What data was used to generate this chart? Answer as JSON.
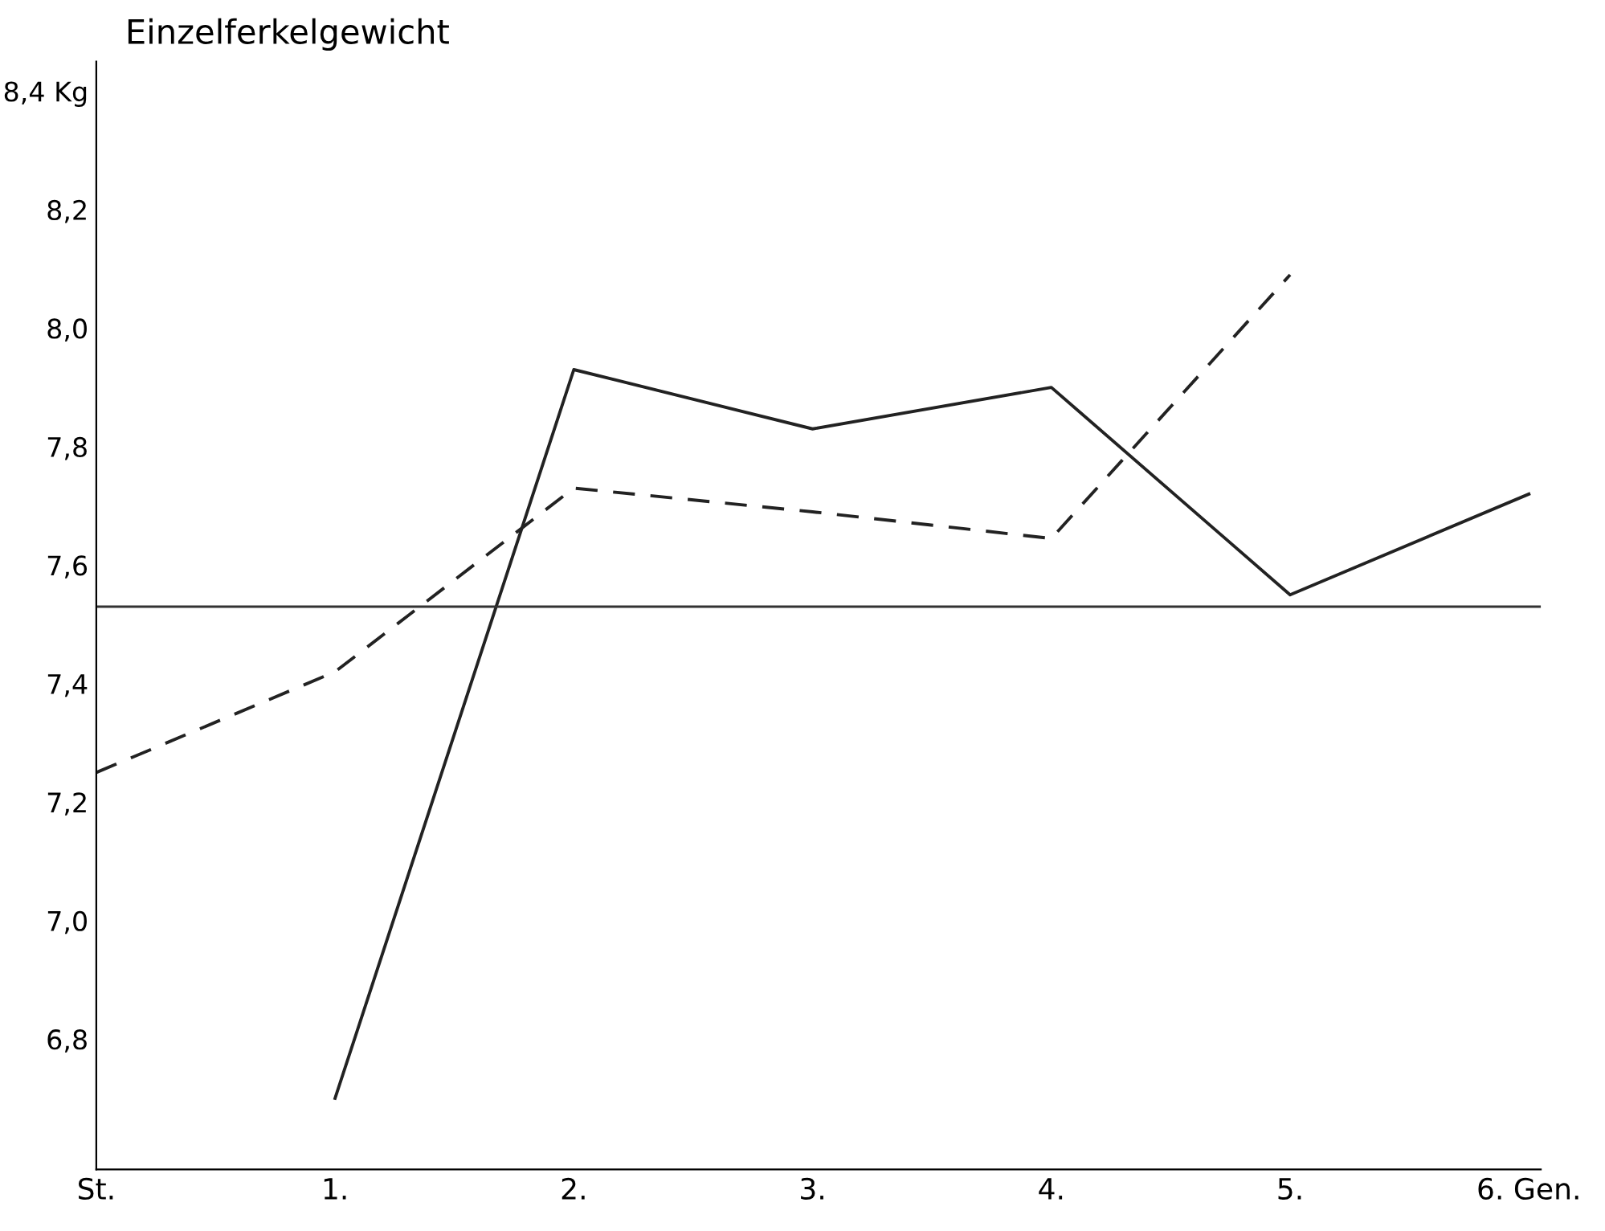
{
  "chart_data": {
    "type": "line",
    "title": "Einzelferkelgewicht",
    "categories": [
      "St.",
      "1.",
      "2.",
      "3.",
      "4.",
      "5.",
      "6. Gen."
    ],
    "series": [
      {
        "color": "#222222",
        "line_style": "solid",
        "values": [
          null,
          6.7,
          7.93,
          7.83,
          7.9,
          7.55,
          7.72
        ]
      },
      {
        "color": "#222222",
        "line_style": "dashed",
        "values": [
          7.25,
          7.42,
          7.73,
          7.69,
          7.645,
          8.09,
          null
        ]
      }
    ],
    "ylim": [
      6.58,
      8.45
    ],
    "yticks": [
      {
        "value": 6.8,
        "label": "6,8"
      },
      {
        "value": 7.0,
        "label": "7,0"
      },
      {
        "value": 7.2,
        "label": "7,2"
      },
      {
        "value": 7.4,
        "label": "7,4"
      },
      {
        "value": 7.6,
        "label": "7,6"
      },
      {
        "value": 7.8,
        "label": "7,8"
      },
      {
        "value": 8.0,
        "label": "8,0"
      },
      {
        "value": 8.2,
        "label": "8,2"
      },
      {
        "value": 8.4,
        "label": "8,4 Kg"
      }
    ],
    "ref_lines": [
      {
        "axis": "y",
        "value": 7.53,
        "color": "#333333",
        "line_style": "solid"
      }
    ],
    "grid": false
  }
}
